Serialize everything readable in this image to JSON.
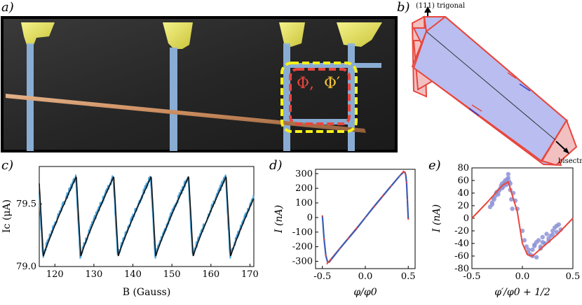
{
  "figure": {
    "panel_a": {
      "label": "a)",
      "flux_label_red": "Φ,",
      "flux_label_yellow": "Φ′"
    },
    "panel_b": {
      "label": "b)",
      "top_axis_label": "(111) trigonal",
      "bottom_axis_label": "bisectrix"
    },
    "panel_c": {
      "label": "c)"
    },
    "panel_d": {
      "label": "d)"
    },
    "panel_e": {
      "label": "e)"
    }
  },
  "colors": {
    "red_trace": "#e8463c",
    "blue_trace": "#4aa6dd",
    "black_trace": "#111111",
    "scatter": "#8f94d6",
    "crystal_fill": "#b9bdf0",
    "crystal_side": "#f2c0c0",
    "yellow_loop": "#f7f21a"
  },
  "chart_data": [
    {
      "id": "c",
      "type": "line",
      "xlabel": "B (Gauss)",
      "ylabel": "Ic (μA)",
      "xlim": [
        116,
        171
      ],
      "ylim": [
        79.0,
        79.8
      ],
      "xticks": [
        "120",
        "130",
        "140",
        "150",
        "160",
        "170"
      ],
      "yticks": [
        "79.0",
        "79.5"
      ],
      "period": 9.6,
      "first_jump": 125.5,
      "min_value": 79.08,
      "max_value": 79.72,
      "series": [
        {
          "name": "measured",
          "color": "blue"
        },
        {
          "name": "fit",
          "color": "black"
        }
      ]
    },
    {
      "id": "d",
      "type": "line",
      "xlabel": "φ/φ0",
      "ylabel": "I (nA)",
      "xlim": [
        -0.58,
        0.58
      ],
      "ylim": [
        -350,
        330
      ],
      "xticks": [
        "-0.5",
        "0.0",
        "0.5"
      ],
      "yticks": [
        "300",
        "200",
        "100",
        "0",
        "-100",
        "-200",
        "-300"
      ],
      "series": [
        {
          "name": "data",
          "x": [
            -0.5,
            -0.48,
            -0.46,
            -0.44,
            -0.42,
            -0.4,
            -0.3,
            -0.2,
            -0.1,
            0.0,
            0.1,
            0.2,
            0.3,
            0.4,
            0.44,
            0.46,
            0.47,
            0.48,
            0.49,
            0.5
          ],
          "y": [
            10,
            -150,
            -260,
            -305,
            -305,
            -290,
            -215,
            -145,
            -75,
            0,
            75,
            145,
            215,
            285,
            308,
            310,
            295,
            240,
            120,
            -10
          ]
        },
        {
          "name": "fit",
          "x": [
            -0.45,
            0.45
          ],
          "y": [
            -320,
            320
          ]
        }
      ]
    },
    {
      "id": "e",
      "type": "scatter",
      "xlabel": "φ′/φ0 + 1/2",
      "ylabel": "I (nA)",
      "xlim": [
        -0.5,
        0.5
      ],
      "ylim": [
        -80,
        80
      ],
      "xticks": [
        "-0.5",
        "0.0",
        "0.5"
      ],
      "yticks": [
        "80",
        "60",
        "40",
        "20",
        "0",
        "-20",
        "-40",
        "-60",
        "-80"
      ],
      "fit": {
        "x": [
          -0.5,
          -0.35,
          -0.2,
          -0.14,
          -0.05,
          0.0,
          0.05,
          0.1,
          0.2,
          0.35,
          0.5
        ],
        "y": [
          0,
          25,
          52,
          58,
          10,
          -40,
          -58,
          -60,
          -46,
          -25,
          0
        ]
      },
      "points": {
        "x": [
          -0.32,
          -0.3,
          -0.28,
          -0.27,
          -0.25,
          -0.24,
          -0.22,
          -0.21,
          -0.2,
          -0.19,
          -0.18,
          -0.17,
          -0.16,
          -0.15,
          -0.14,
          -0.13,
          -0.12,
          -0.11,
          -0.1,
          -0.3,
          -0.29,
          -0.26,
          -0.23,
          -0.2,
          -0.17,
          -0.14,
          -0.12,
          -0.09,
          -0.07,
          -0.05,
          0.0,
          0.02,
          0.04,
          0.06,
          0.08,
          0.1,
          0.12,
          0.14,
          0.16,
          0.18,
          0.2,
          0.22,
          0.24,
          0.26,
          0.28,
          0.3,
          0.32,
          0.34,
          0.36,
          0.38,
          0.1,
          0.14,
          0.18,
          0.22,
          0.26,
          0.3,
          0.34,
          0.06,
          0.12,
          0.2
        ],
        "y": [
          18,
          25,
          30,
          35,
          42,
          38,
          47,
          52,
          55,
          50,
          57,
          60,
          53,
          62,
          70,
          58,
          45,
          30,
          15,
          22,
          32,
          40,
          44,
          48,
          54,
          64,
          55,
          40,
          28,
          15,
          -20,
          -35,
          -45,
          -55,
          -58,
          -50,
          -42,
          -38,
          -35,
          -45,
          -30,
          -40,
          -25,
          -32,
          -28,
          -20,
          -15,
          -22,
          -10,
          -18,
          -60,
          -62,
          -48,
          -40,
          -36,
          -26,
          -12,
          -50,
          -44,
          -38
        ]
      }
    }
  ]
}
